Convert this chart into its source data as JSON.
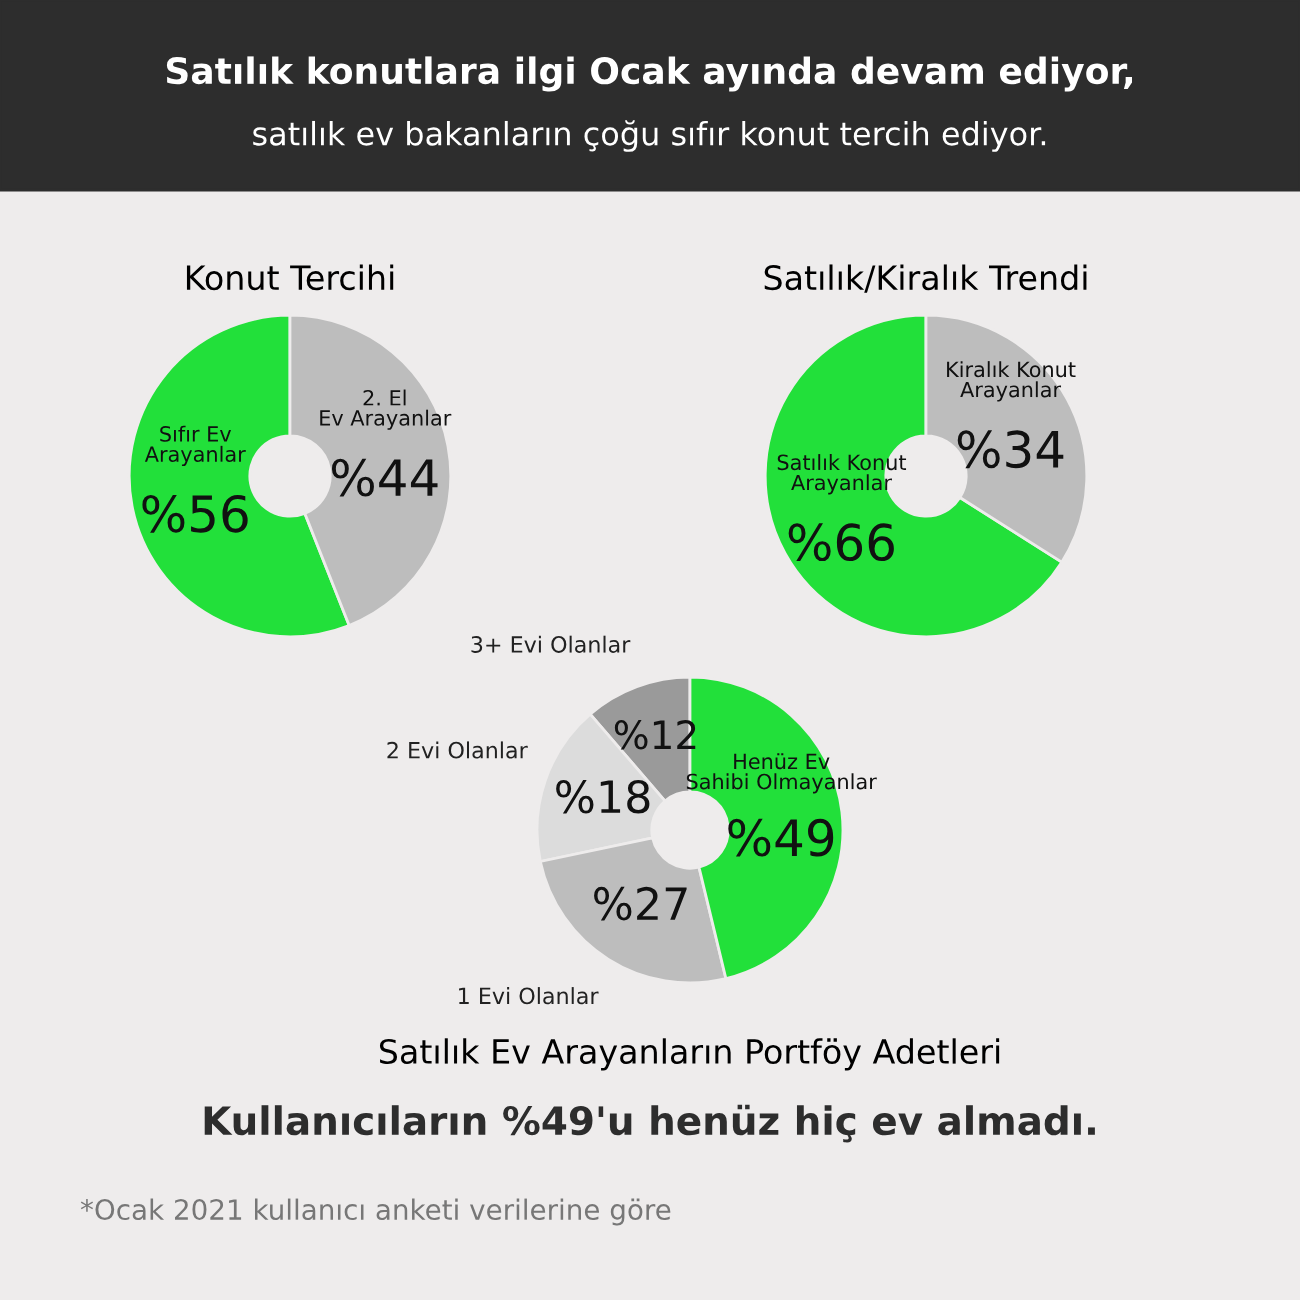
{
  "chart_data": [
    {
      "type": "other",
      "title": "Satılık konutlara ilgi Ocak ayında devam ediyor,",
      "subtitle": "satılık ev bakanların çoğu sıfır konut tercih ediyor."
    },
    {
      "type": "donut",
      "title": "Konut Tercihi",
      "categories": [
        "Sıfır Ev Arayanlar",
        "2. El Ev Arayanlar"
      ],
      "values": [
        56,
        44
      ],
      "value_labels": [
        "%56",
        "%44"
      ],
      "colors": [
        "#22e03a",
        "#bdbdbd"
      ]
    },
    {
      "type": "donut",
      "title": "Satılık/Kiralık Trendi",
      "categories": [
        "Satılık Konut Arayanlar",
        "Kiralık Konut Arayanlar"
      ],
      "values": [
        66,
        34
      ],
      "value_labels": [
        "%66",
        "%34"
      ],
      "colors": [
        "#22e03a",
        "#bdbdbd"
      ]
    },
    {
      "type": "donut",
      "title": "Satılık Ev Arayanların Portföy Adetleri",
      "categories": [
        "3+ Evi Olanlar",
        "2 Evi Olanlar",
        "1 Evi Olanlar",
        "Henüz Ev Sahibi Olmayanlar"
      ],
      "values": [
        12,
        18,
        27,
        49
      ],
      "value_labels": [
        "%12",
        "%18",
        "%27",
        "%49"
      ],
      "colors": [
        "#9a9a9a",
        "#dcdcdc",
        "#bdbdbd",
        "#22e03a"
      ]
    },
    {
      "type": "other",
      "annotations": [
        "Kullanıcıların %49'u henüz hiç ev almadı.",
        "*Ocak 2021 kullanıcı anketi verilerine göre"
      ]
    }
  ]
}
